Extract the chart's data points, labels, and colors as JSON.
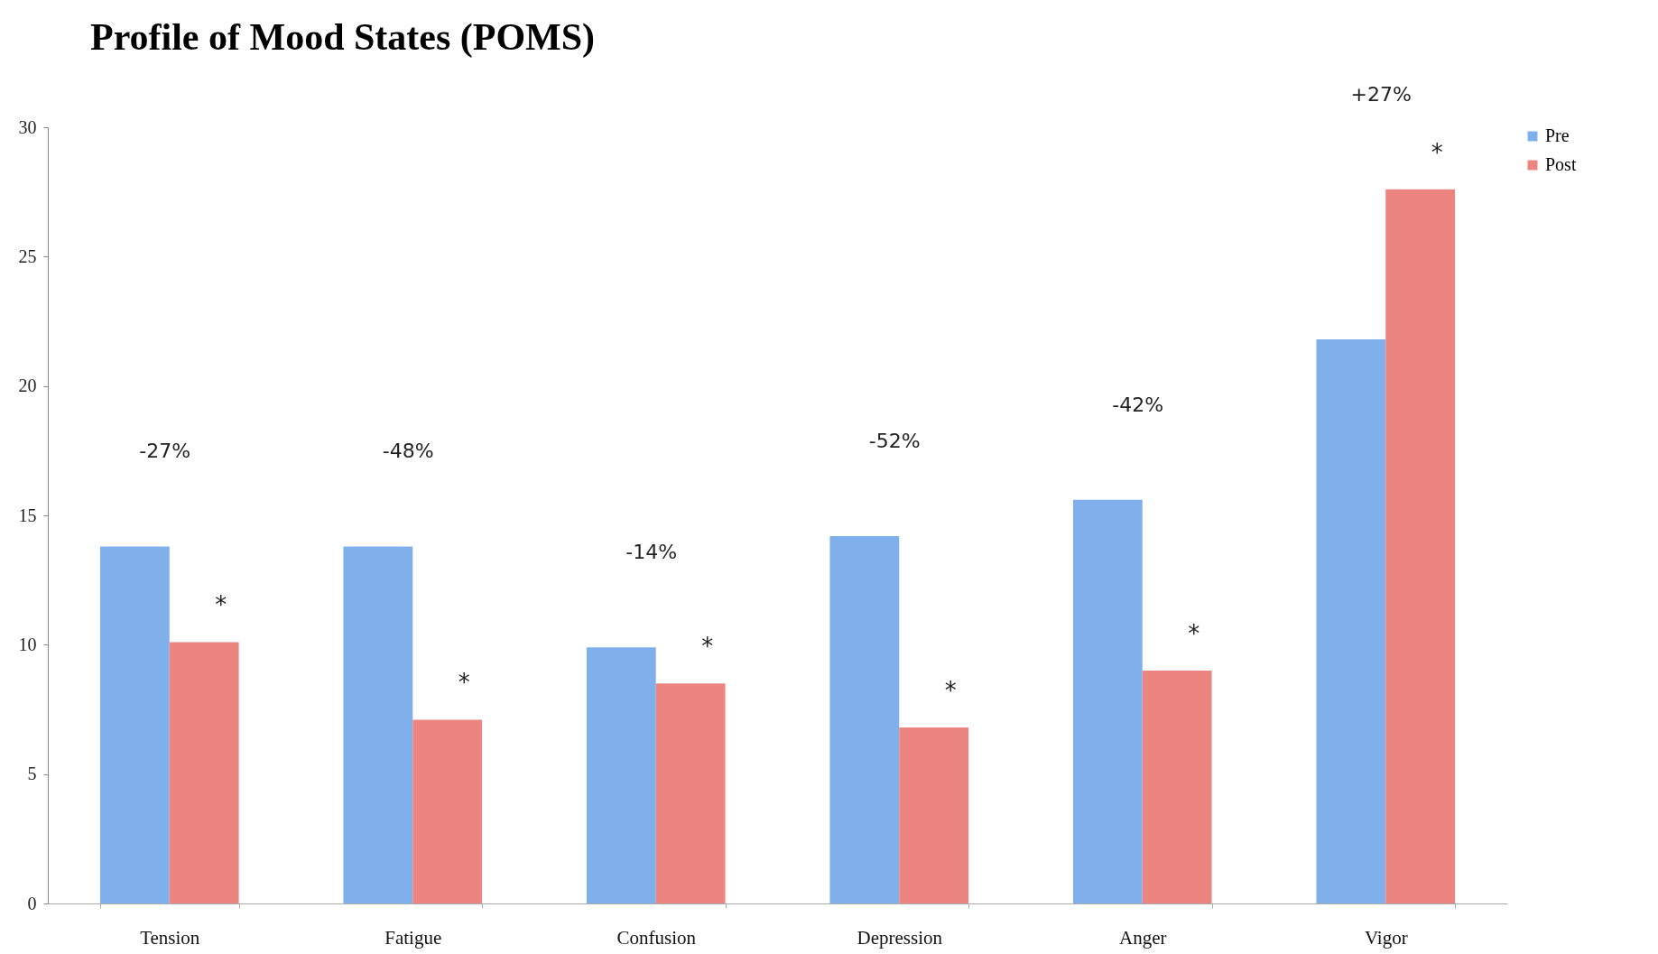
{
  "chart_data": {
    "type": "bar",
    "title": "Profile of Mood States (POMS)",
    "categories": [
      "Tension",
      "Fatigue",
      "Confusion",
      "Depression",
      "Anger",
      "Vigor"
    ],
    "series": [
      {
        "name": "Pre",
        "color": "#7fb0ec",
        "values": [
          13.8,
          13.8,
          9.9,
          14.2,
          15.6,
          21.8
        ]
      },
      {
        "name": "Post",
        "color": "#ec8580",
        "values": [
          10.1,
          7.1,
          8.5,
          6.8,
          9.0,
          27.6
        ]
      }
    ],
    "ylim": [
      0,
      30
    ],
    "yticks": [
      0,
      5,
      10,
      15,
      20,
      25,
      30
    ],
    "grid": false,
    "legend": "right",
    "annotations": [
      "-27%",
      "-48%",
      "-14%",
      "-52%",
      "-42%",
      "+27%",
      "*",
      "*",
      "*",
      "*",
      "*",
      "*"
    ]
  }
}
